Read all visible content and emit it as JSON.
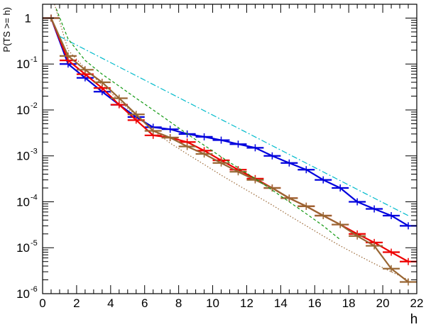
{
  "chart_data": {
    "type": "line",
    "ylabel": "P(TS >= h)",
    "xlabel": "h",
    "x_range": [
      0,
      22
    ],
    "y_range": [
      1e-06,
      2
    ],
    "y_scale": "log",
    "x_ticks": [
      0,
      2,
      4,
      6,
      8,
      10,
      12,
      14,
      16,
      18,
      20,
      22
    ],
    "y_ticks": [
      {
        "value": 1,
        "base": "1",
        "exp": ""
      },
      {
        "value": 0.1,
        "base": "10",
        "exp": "-1"
      },
      {
        "value": 0.01,
        "base": "10",
        "exp": "-2"
      },
      {
        "value": 0.001,
        "base": "10",
        "exp": "-3"
      },
      {
        "value": 0.0001,
        "base": "10",
        "exp": "-4"
      },
      {
        "value": 1e-05,
        "base": "10",
        "exp": "-5"
      },
      {
        "value": 1e-06,
        "base": "10",
        "exp": "-6"
      }
    ],
    "grid": false,
    "series": [
      {
        "color": "#0000dd",
        "style": "histogram",
        "bin_width": 1.0,
        "x": [
          0.5,
          1.5,
          2.5,
          3.5,
          4.5,
          5.5,
          6.5,
          7.5,
          8.5,
          9.5,
          10.5,
          11.5,
          12.5,
          13.5,
          14.5,
          15.5,
          16.5,
          17.5,
          18.5,
          19.5,
          20.5,
          21.5
        ],
        "y": [
          1.0,
          0.1,
          0.05,
          0.025,
          0.013,
          0.007,
          0.0042,
          0.0038,
          0.003,
          0.0026,
          0.0022,
          0.0018,
          0.0015,
          0.001,
          0.0007,
          0.0005,
          0.0003,
          0.0002,
          0.0001,
          7e-05,
          5e-05,
          3e-05
        ]
      },
      {
        "color": "#ee0000",
        "style": "histogram",
        "bin_width": 1.0,
        "x": [
          0.5,
          1.5,
          2.5,
          3.5,
          4.5,
          5.5,
          6.5,
          7.5,
          8.5,
          9.5,
          10.5,
          11.5,
          12.5,
          13.5,
          14.5,
          15.5,
          16.5,
          17.5,
          18.5,
          19.5,
          20.5,
          21.5
        ],
        "y": [
          1.0,
          0.12,
          0.06,
          0.03,
          0.013,
          0.006,
          0.0028,
          0.0025,
          0.002,
          0.0013,
          0.0008,
          0.0005,
          0.00032,
          0.0002,
          0.00012,
          8e-05,
          5e-05,
          3.2e-05,
          2e-05,
          1.3e-05,
          8e-06,
          5e-06
        ]
      },
      {
        "color": "#996633",
        "style": "histogram",
        "bin_width": 1.0,
        "x": [
          0.5,
          1.5,
          2.5,
          3.5,
          4.5,
          5.5,
          6.5,
          7.5,
          8.5,
          9.5,
          10.5,
          11.5,
          12.5,
          13.5,
          14.5,
          15.5,
          16.5,
          17.5,
          18.5,
          19.5,
          20.5,
          21.5
        ],
        "y": [
          1.0,
          0.15,
          0.075,
          0.04,
          0.018,
          0.008,
          0.0035,
          0.0025,
          0.0016,
          0.0011,
          0.0007,
          0.00045,
          0.0003,
          0.0002,
          0.00012,
          8e-05,
          5e-05,
          3.2e-05,
          1.8e-05,
          1.1e-05,
          3.5e-06,
          1.8e-06
        ]
      },
      {
        "color": "#00bbcc",
        "style": "dashdot",
        "x": [
          1.0,
          21.5
        ],
        "y": [
          0.4,
          5e-05
        ]
      },
      {
        "color": "#119911",
        "style": "dashed",
        "x": [
          0.8,
          1.5,
          2.5,
          3.5,
          4.5,
          5.5,
          6.5,
          7.5,
          8.5,
          9.5,
          10.5,
          11.5,
          12.5,
          13.5,
          14.5,
          15.5,
          16.5,
          17.5
        ],
        "y": [
          1.6,
          0.35,
          0.12,
          0.06,
          0.033,
          0.018,
          0.01,
          0.0055,
          0.003,
          0.0017,
          0.00095,
          0.00055,
          0.00032,
          0.00018,
          0.0001,
          5.5e-05,
          3e-05,
          1.5e-05
        ]
      },
      {
        "color": "#996633",
        "style": "dotted",
        "x": [
          0.7,
          1.5,
          2.5,
          3.5,
          4.5,
          5.5,
          6.5,
          7.5,
          8.5,
          9.5,
          10.5,
          11.5,
          12.5,
          13.5,
          14.5,
          15.5,
          16.5,
          17.5,
          18.5,
          19.5,
          20.5,
          21.5
        ],
        "y": [
          2.0,
          0.2,
          0.08,
          0.035,
          0.016,
          0.0075,
          0.0036,
          0.0019,
          0.0011,
          0.00065,
          0.00038,
          0.00023,
          0.00014,
          8.5e-05,
          5e-05,
          3e-05,
          1.8e-05,
          1.1e-05,
          7e-06,
          4.5e-06,
          3e-06,
          2e-06
        ]
      }
    ]
  }
}
